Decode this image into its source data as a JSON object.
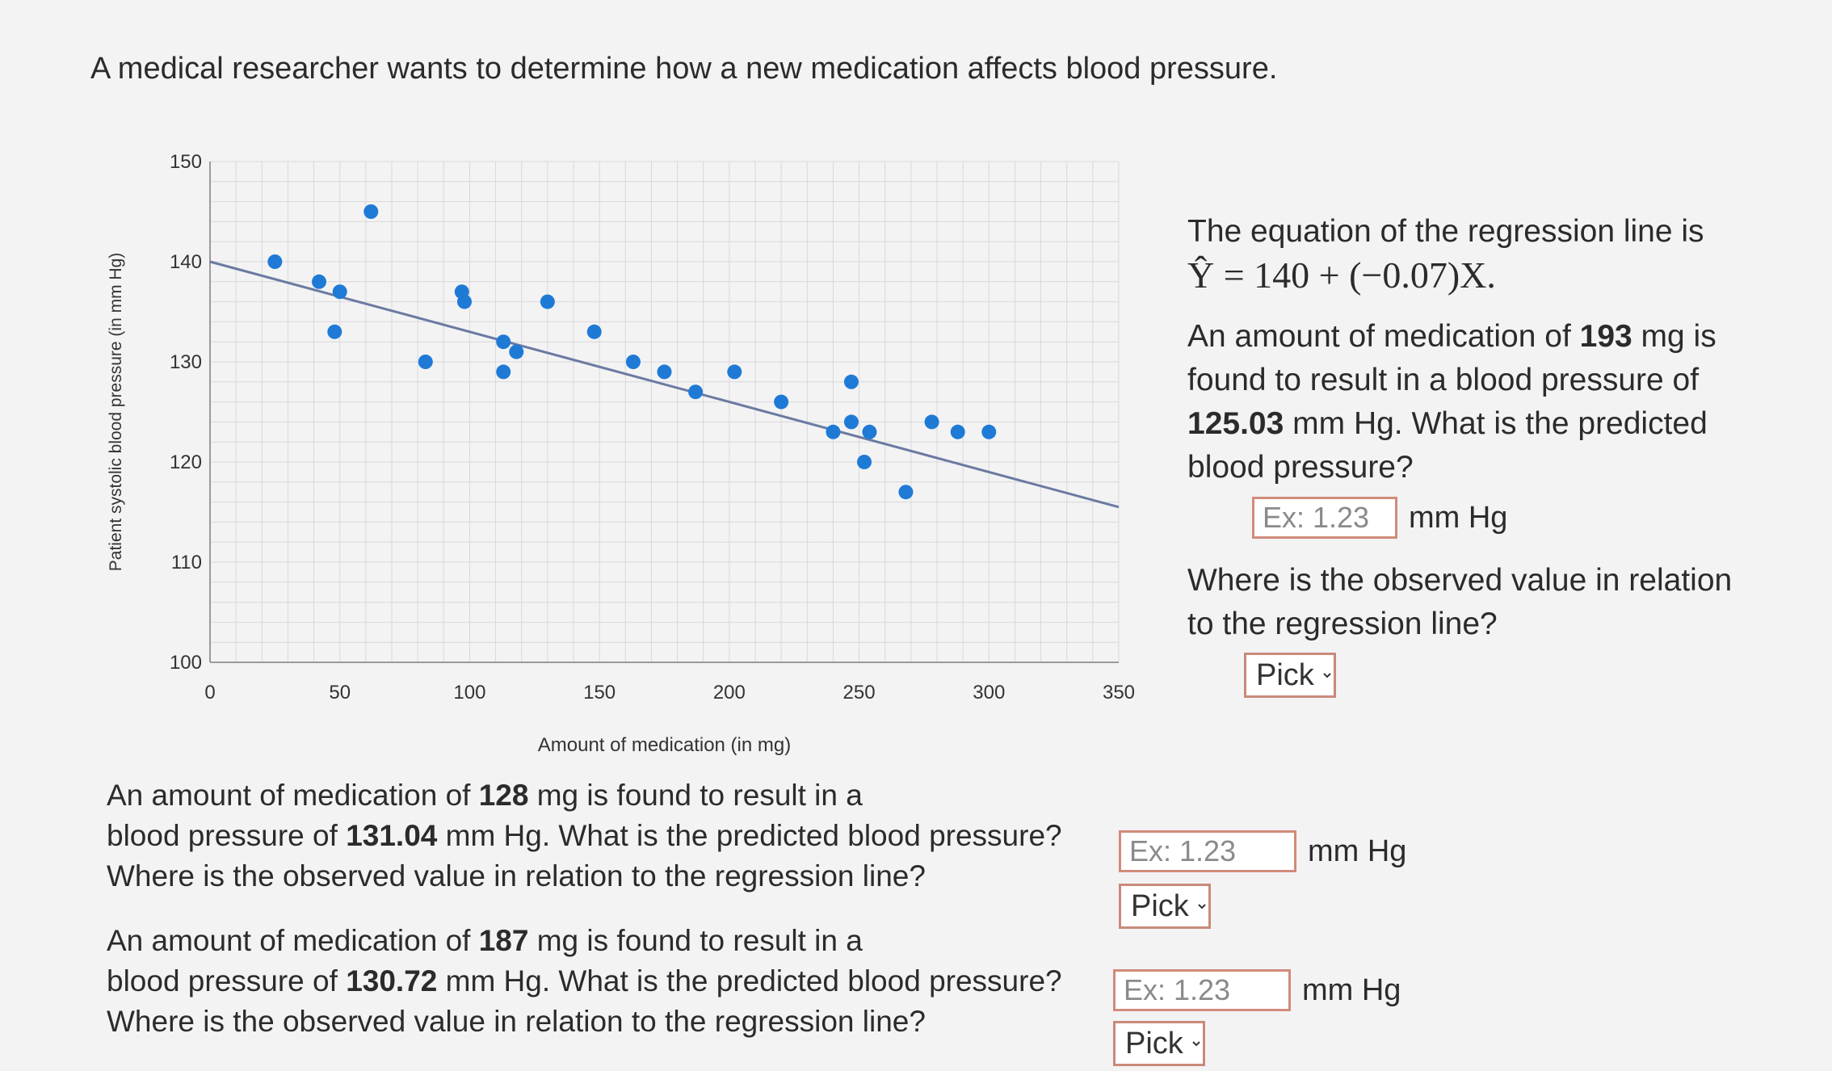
{
  "intro": "A medical researcher wants to determine how a new medication affects blood pressure.",
  "chart_data": {
    "type": "scatter",
    "xlabel": "Amount of medication (in mg)",
    "ylabel": "Patient systolic blood pressure (in mm Hg)",
    "xlim": [
      0,
      350
    ],
    "ylim": [
      100,
      150
    ],
    "xticks": [
      0,
      50,
      100,
      150,
      200,
      250,
      300,
      350
    ],
    "yticks": [
      100,
      110,
      120,
      130,
      140,
      150
    ],
    "regression": {
      "intercept": 140,
      "slope": -0.07
    },
    "points": [
      {
        "x": 25,
        "y": 140
      },
      {
        "x": 42,
        "y": 138
      },
      {
        "x": 50,
        "y": 137
      },
      {
        "x": 48,
        "y": 133
      },
      {
        "x": 62,
        "y": 145
      },
      {
        "x": 83,
        "y": 130
      },
      {
        "x": 97,
        "y": 137
      },
      {
        "x": 98,
        "y": 136
      },
      {
        "x": 113,
        "y": 132
      },
      {
        "x": 118,
        "y": 131
      },
      {
        "x": 113,
        "y": 129
      },
      {
        "x": 130,
        "y": 136
      },
      {
        "x": 148,
        "y": 133
      },
      {
        "x": 163,
        "y": 130
      },
      {
        "x": 175,
        "y": 129
      },
      {
        "x": 187,
        "y": 127
      },
      {
        "x": 202,
        "y": 129
      },
      {
        "x": 220,
        "y": 126
      },
      {
        "x": 240,
        "y": 123
      },
      {
        "x": 247,
        "y": 128
      },
      {
        "x": 247,
        "y": 124
      },
      {
        "x": 254,
        "y": 123
      },
      {
        "x": 252,
        "y": 120
      },
      {
        "x": 268,
        "y": 117
      },
      {
        "x": 278,
        "y": 124
      },
      {
        "x": 288,
        "y": 123
      },
      {
        "x": 300,
        "y": 123
      }
    ]
  },
  "side": {
    "line1": "The equation of the regression line is",
    "equation": "Ŷ = 140 + (−0.07)X.",
    "q1_part1": "An amount of medication of ",
    "q1_mg": "193",
    "q1_part2": " mg is found to result in a blood pressure of ",
    "q1_bp": "125.03",
    "q1_part3": " mm Hg. What is the predicted blood pressure?",
    "placeholder": "Ex: 1.23",
    "unit": "mm Hg",
    "where": "Where is the observed value in relation to the regression line?",
    "pick": "Pick"
  },
  "q2": {
    "part1": "An amount of medication of ",
    "mg": "128",
    "part2": " mg is found to result in a",
    "part3": "blood pressure of ",
    "bp": "131.04",
    "part4": " mm Hg. What is the predicted blood pressure?",
    "where": "Where is the observed value in relation to the regression line?",
    "placeholder": "Ex: 1.23",
    "unit": "mm Hg",
    "pick": "Pick"
  },
  "q3": {
    "part1": "An amount of medication of ",
    "mg": "187",
    "part2": " mg is found to result in a",
    "part3": "blood pressure of ",
    "bp": "130.72",
    "part4": " mm Hg. What is the predicted blood pressure?",
    "where": "Where is the observed value in relation to the regression line?",
    "placeholder": "Ex: 1.23",
    "unit": "mm Hg",
    "pick": "Pick"
  }
}
